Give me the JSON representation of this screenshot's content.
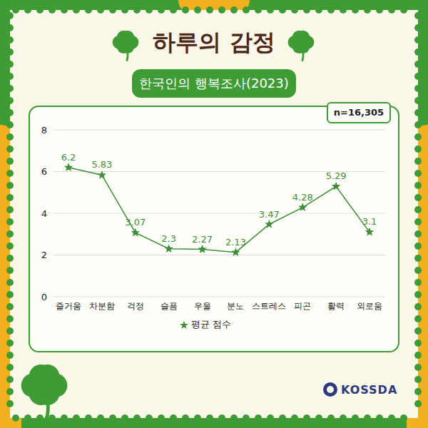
{
  "chart_data": {
    "type": "line",
    "title": "하루의 감정",
    "subtitle": "한국인의 행복조사(2023)",
    "annotations": [
      "n=16,305"
    ],
    "source": "KOSSDA",
    "categories": [
      "즐거움",
      "차분함",
      "걱정",
      "슬픔",
      "우울",
      "분노",
      "스트레스",
      "피곤",
      "활력",
      "외로움"
    ],
    "series": [
      {
        "name": "평균 점수",
        "color": "#3e8e3a",
        "marker": "star",
        "values": [
          6.2,
          5.83,
          3.07,
          2.3,
          2.27,
          2.13,
          3.47,
          4.28,
          5.29,
          3.1
        ]
      }
    ],
    "ylim": [
      0,
      8
    ],
    "yticks": [
      0,
      2,
      4,
      6,
      8
    ],
    "grid": true,
    "data_labels": true,
    "legend": "bottom"
  }
}
